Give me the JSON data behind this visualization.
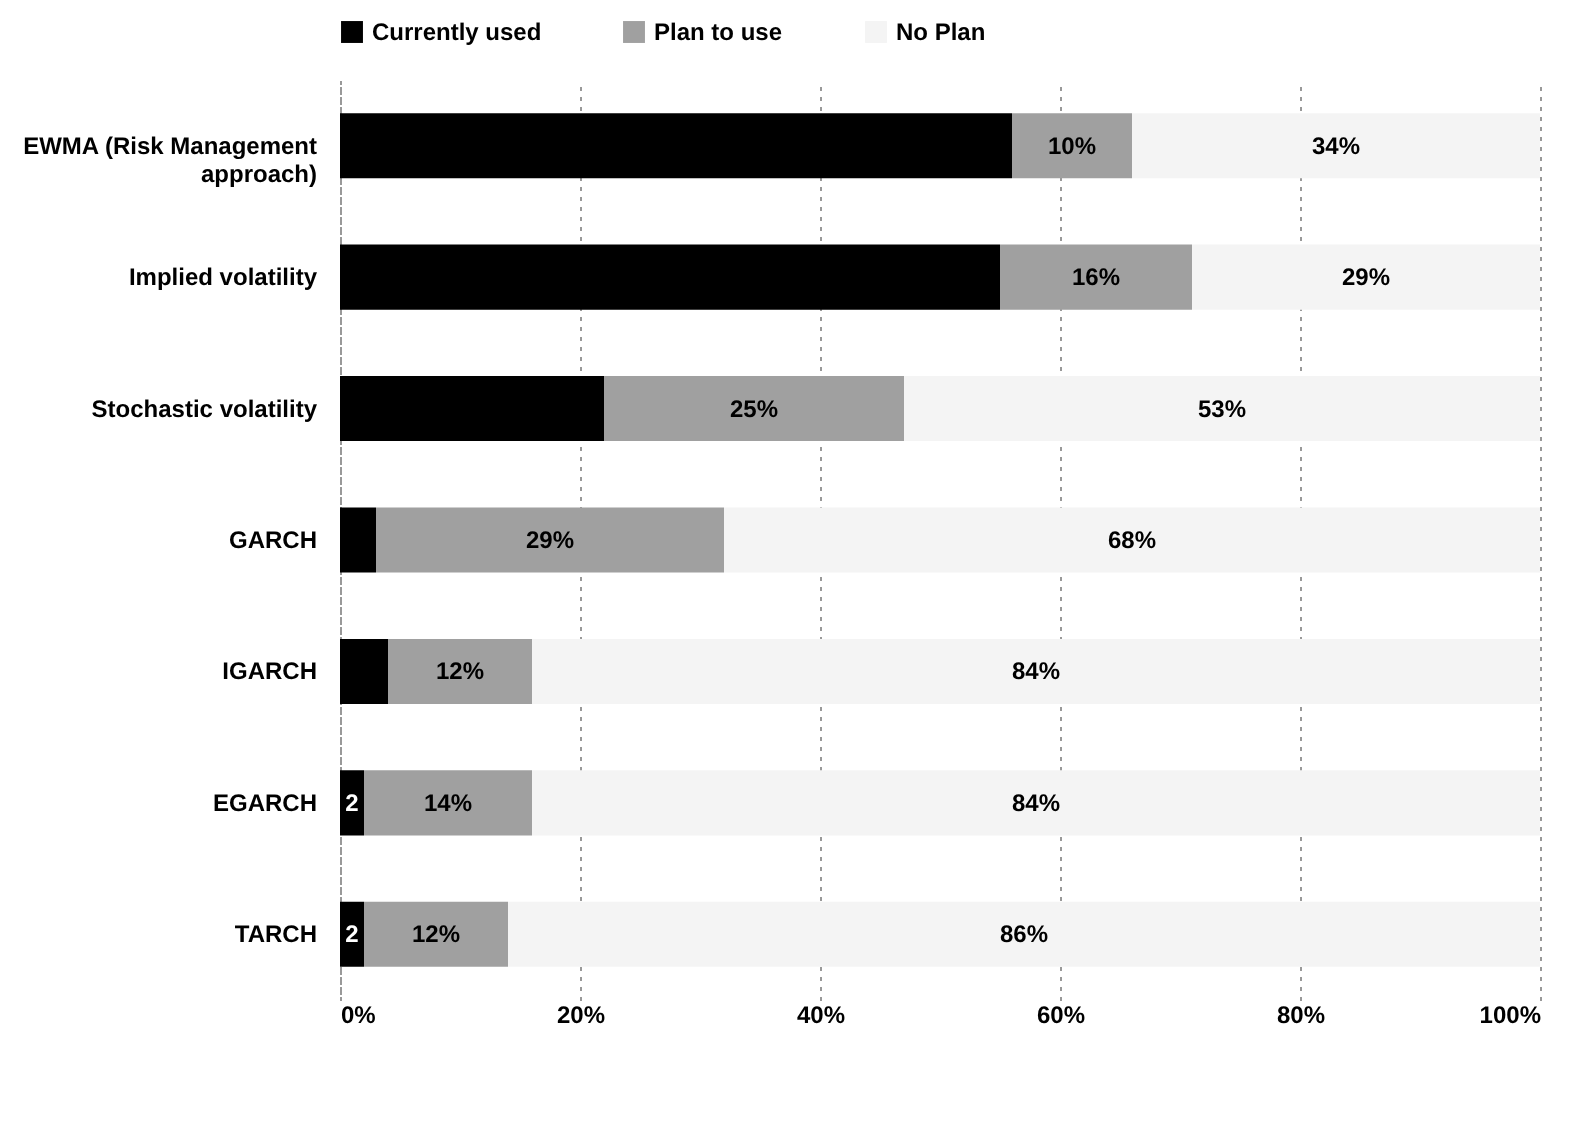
{
  "chart_data": {
    "type": "bar",
    "orientation": "horizontal",
    "stacked": true,
    "categories": [
      "EWMA (Risk Management approach)",
      "Implied volatility",
      "Stochastic volatility",
      "GARCH",
      "IGARCH",
      "EGARCH",
      "TARCH"
    ],
    "series": [
      {
        "name": "Currently used",
        "color": "#000000",
        "values": [
          56,
          55,
          22,
          3,
          4,
          2,
          2
        ],
        "value_labels": [
          null,
          null,
          null,
          null,
          null,
          "2",
          "2"
        ]
      },
      {
        "name": "Plan to use",
        "color": "#a0a0a0",
        "values": [
          10,
          16,
          25,
          29,
          12,
          14,
          12
        ],
        "value_labels": [
          "10%",
          "16%",
          "25%",
          "29%",
          "12%",
          "14%",
          "12%"
        ]
      },
      {
        "name": "No Plan",
        "color": "#f4f4f4",
        "values": [
          34,
          29,
          53,
          68,
          84,
          84,
          86
        ],
        "value_labels": [
          "34%",
          "29%",
          "53%",
          "68%",
          "84%",
          "84%",
          "86%"
        ]
      }
    ],
    "xlim": [
      0,
      100
    ],
    "xticks": [
      {
        "value": 0,
        "label": "0%"
      },
      {
        "value": 20,
        "label": "20%"
      },
      {
        "value": 40,
        "label": "40%"
      },
      {
        "value": 60,
        "label": "60%"
      },
      {
        "value": 80,
        "label": "80%"
      },
      {
        "value": 100,
        "label": "100%"
      }
    ],
    "grid": "x",
    "legend": "top"
  }
}
